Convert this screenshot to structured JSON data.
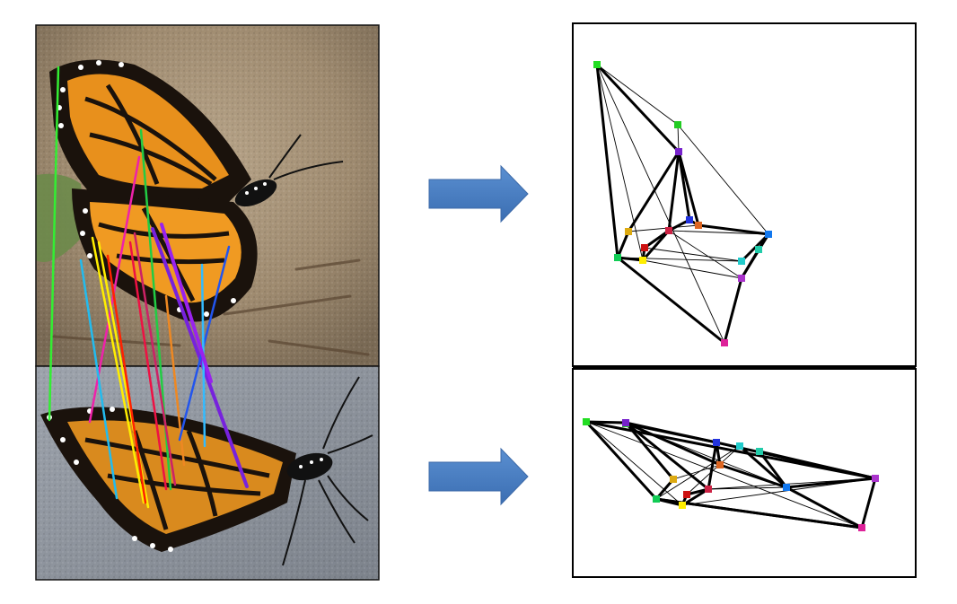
{
  "colors": {
    "arrow_fill": "#4a7fc1",
    "arrow_edge": "#3d6aa8",
    "graph_edge": "#000000"
  },
  "nodes": [
    {
      "id": "n1",
      "color": "#22dd22"
    },
    {
      "id": "n2",
      "color": "#22cc22"
    },
    {
      "id": "n3",
      "color": "#7722cc"
    },
    {
      "id": "n4",
      "color": "#2233dd"
    },
    {
      "id": "n5",
      "color": "#dd6622"
    },
    {
      "id": "n6",
      "color": "#cc2244"
    },
    {
      "id": "n7",
      "color": "#ddaa11"
    },
    {
      "id": "n8",
      "color": "#11cc55"
    },
    {
      "id": "n9",
      "color": "#ffee00"
    },
    {
      "id": "n10",
      "color": "#cc1111"
    },
    {
      "id": "n11",
      "color": "#1177ee"
    },
    {
      "id": "n12",
      "color": "#22cccc"
    },
    {
      "id": "n13",
      "color": "#22ccaa"
    },
    {
      "id": "n14",
      "color": "#aa33cc"
    },
    {
      "id": "n15",
      "color": "#dd2299"
    }
  ],
  "edges": [
    [
      "n1",
      "n3"
    ],
    [
      "n1",
      "n8"
    ],
    [
      "n3",
      "n7"
    ],
    [
      "n3",
      "n4"
    ],
    [
      "n3",
      "n5"
    ],
    [
      "n3",
      "n6"
    ],
    [
      "n4",
      "n5"
    ],
    [
      "n5",
      "n11"
    ],
    [
      "n11",
      "n14"
    ],
    [
      "n14",
      "n15"
    ],
    [
      "n15",
      "n8"
    ],
    [
      "n8",
      "n9"
    ],
    [
      "n9",
      "n10"
    ],
    [
      "n10",
      "n6"
    ],
    [
      "n6",
      "n4"
    ],
    [
      "n7",
      "n8"
    ],
    [
      "n6",
      "n9"
    ],
    [
      "n12",
      "n11"
    ],
    [
      "n13",
      "n11"
    ],
    [
      "n14",
      "n13"
    ]
  ],
  "thin_edges": [
    [
      "n1",
      "n2"
    ],
    [
      "n2",
      "n11"
    ],
    [
      "n1",
      "n9"
    ],
    [
      "n1",
      "n15"
    ],
    [
      "n2",
      "n3"
    ],
    [
      "n6",
      "n11"
    ],
    [
      "n9",
      "n14"
    ],
    [
      "n10",
      "n12"
    ],
    [
      "n6",
      "n14"
    ],
    [
      "n7",
      "n5"
    ],
    [
      "n8",
      "n12"
    ]
  ],
  "correspondences": [
    {
      "color": "#33ee33"
    },
    {
      "color": "#ee22aa"
    },
    {
      "color": "#22cc44"
    },
    {
      "color": "#ffee00"
    },
    {
      "color": "#ffee00"
    },
    {
      "color": "#ff2200"
    },
    {
      "color": "#22bbee"
    },
    {
      "color": "#ee8822"
    },
    {
      "color": "#7722dd"
    },
    {
      "color": "#2255ee"
    },
    {
      "color": "#cc2266"
    },
    {
      "color": "#ee1144"
    },
    {
      "color": "#33bbff"
    },
    {
      "color": "#9922ee"
    }
  ]
}
